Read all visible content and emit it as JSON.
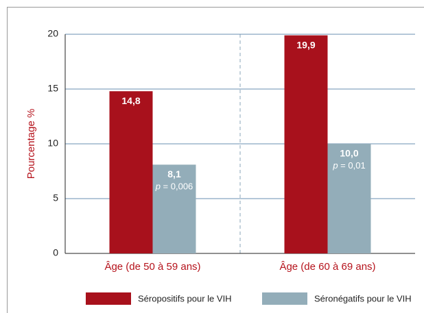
{
  "chart_data": {
    "type": "bar",
    "y_label": "Pourcentage %",
    "categories": [
      "Âge (de 50 à 59 ans)",
      "Âge (de 60 à 69 ans)"
    ],
    "series": [
      {
        "name": "Séropositifs pour le VIH",
        "color": "#a8111c",
        "values": [
          14.8,
          19.9
        ],
        "value_labels": [
          "14,8",
          "19,9"
        ]
      },
      {
        "name": "Séronégatifs pour le VIH",
        "color": "#93adb9",
        "values": [
          8.1,
          10.0
        ],
        "value_labels": [
          "8,1",
          "10,0"
        ]
      }
    ],
    "p_symbol": "p",
    "p_values": [
      "= 0,006",
      "= 0,01"
    ],
    "ylim": [
      0,
      20
    ],
    "yticks": [
      0,
      5,
      10,
      15,
      20
    ],
    "grid": true
  }
}
